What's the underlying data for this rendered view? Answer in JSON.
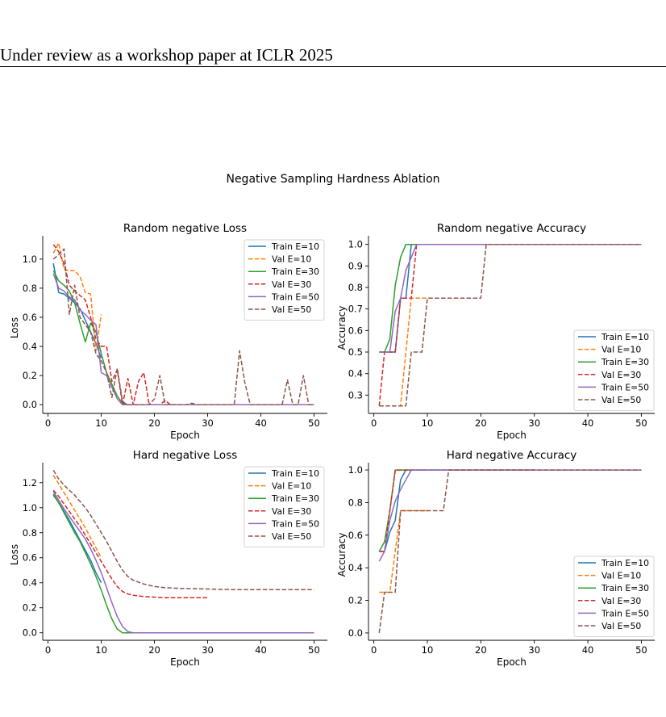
{
  "header": {
    "text": "Under review as a workshop paper at ICLR 2025"
  },
  "figure": {
    "suptitle": "Negative Sampling Hardness Ablation"
  },
  "colors": {
    "Train E=10": "#1f77b4",
    "Val E=10": "#ff7f0e",
    "Train E=30": "#2ca02c",
    "Val E=30": "#d62728",
    "Train E=50": "#9467bd",
    "Val E=50": "#8c564b"
  },
  "chart_data": [
    {
      "type": "line",
      "title": "Random negative Loss",
      "xlabel": "Epoch",
      "ylabel": "Loss",
      "xlim": [
        -1,
        52.5
      ],
      "ylim": [
        -0.06,
        1.16
      ],
      "xticks": [
        0,
        10,
        20,
        30,
        40,
        50
      ],
      "yticks": [
        0.0,
        0.2,
        0.4,
        0.6,
        0.8,
        1.0
      ],
      "ytick_labels": [
        "0.0",
        "0.2",
        "0.4",
        "0.6",
        "0.8",
        "1.0"
      ],
      "grid": false,
      "legend": "top-right",
      "series": [
        {
          "name": "Train E=10",
          "dash": false,
          "x": [
            1,
            2,
            3,
            4,
            5,
            6,
            7,
            8,
            9,
            10
          ],
          "y": [
            0.97,
            0.77,
            0.76,
            0.73,
            0.7,
            0.66,
            0.58,
            0.5,
            0.42,
            0.32
          ]
        },
        {
          "name": "Val E=10",
          "dash": true,
          "x": [
            1,
            2,
            3,
            4,
            5,
            6,
            7,
            8,
            9,
            10
          ],
          "y": [
            1.04,
            1.11,
            0.93,
            0.92,
            0.92,
            0.88,
            0.77,
            0.76,
            0.37,
            0.62
          ]
        },
        {
          "name": "Train E=30",
          "dash": false,
          "x": [
            1,
            2,
            3,
            4,
            5,
            6,
            7,
            8,
            9,
            10,
            11,
            12,
            13,
            14,
            15,
            16,
            17,
            18,
            19,
            20,
            21,
            22,
            23,
            24,
            25,
            26,
            27,
            28,
            29,
            30
          ],
          "y": [
            0.92,
            0.85,
            0.82,
            0.78,
            0.7,
            0.56,
            0.43,
            0.56,
            0.5,
            0.35,
            0.22,
            0.14,
            0.06,
            0.01,
            0,
            0,
            0,
            0,
            0,
            0,
            0,
            0,
            0,
            0,
            0,
            0,
            0,
            0,
            0,
            0
          ]
        },
        {
          "name": "Val E=30",
          "dash": true,
          "x": [
            1,
            2,
            3,
            4,
            5,
            6,
            7,
            8,
            9,
            10,
            11,
            12,
            13,
            14,
            15,
            16,
            17,
            18,
            19,
            20,
            21,
            22,
            23,
            24,
            25,
            26,
            27,
            28,
            29,
            30
          ],
          "y": [
            1.1,
            1.05,
            0.97,
            0.82,
            0.78,
            0.75,
            0.72,
            0.6,
            0.45,
            0.4,
            0.4,
            0.16,
            0.24,
            0,
            0.18,
            0,
            0.16,
            0.22,
            0,
            0,
            0,
            0.03,
            0,
            0,
            0,
            0,
            0,
            0,
            0,
            0
          ]
        },
        {
          "name": "Train E=50",
          "dash": false,
          "x": [
            1,
            2,
            3,
            4,
            5,
            6,
            7,
            8,
            9,
            10,
            11,
            12,
            13,
            14,
            15,
            16,
            20,
            25,
            30,
            35,
            40,
            45,
            50
          ],
          "y": [
            0.9,
            0.8,
            0.78,
            0.74,
            0.72,
            0.65,
            0.62,
            0.58,
            0.55,
            0.22,
            0.2,
            0.12,
            0.04,
            0,
            0,
            0,
            0,
            0,
            0,
            0,
            0,
            0,
            0
          ]
        },
        {
          "name": "Val E=50",
          "dash": true,
          "x": [
            1,
            2,
            3,
            4,
            5,
            6,
            7,
            8,
            9,
            10,
            11,
            12,
            13,
            14,
            15,
            16,
            19,
            20,
            21,
            22,
            26,
            27,
            28,
            35,
            36,
            37,
            38,
            44,
            45,
            46,
            47,
            48,
            49,
            50
          ],
          "y": [
            1.0,
            1.03,
            1.07,
            0.62,
            0.82,
            0.6,
            0.55,
            0.5,
            0.35,
            0.3,
            0.22,
            0.05,
            0.25,
            0.02,
            0,
            0,
            0,
            0.04,
            0.2,
            0,
            0,
            0.01,
            0,
            0,
            0.37,
            0.15,
            0,
            0,
            0.17,
            0,
            0,
            0.2,
            0,
            0
          ]
        }
      ]
    },
    {
      "type": "line",
      "title": "Random negative Accuracy",
      "xlabel": "Epoch",
      "ylabel": "Accuracy",
      "xlim": [
        -1,
        52.5
      ],
      "ylim": [
        0.215,
        1.04
      ],
      "xticks": [
        0,
        10,
        20,
        30,
        40,
        50
      ],
      "yticks": [
        0.3,
        0.4,
        0.5,
        0.6,
        0.7,
        0.8,
        0.9,
        1.0
      ],
      "ytick_labels": [
        "0.3",
        "0.4",
        "0.5",
        "0.6",
        "0.7",
        "0.8",
        "0.9",
        "1.0"
      ],
      "grid": false,
      "legend": "lower-right",
      "series": [
        {
          "name": "Train E=10",
          "dash": false,
          "x": [
            1,
            2,
            3,
            4,
            5,
            6,
            7,
            8,
            9,
            10,
            50
          ],
          "y": [
            0.5,
            0.5,
            0.5,
            0.5,
            0.75,
            0.75,
            1.0,
            1.0,
            1.0,
            1.0,
            1.0
          ]
        },
        {
          "name": "Val E=10",
          "dash": true,
          "x": [
            1,
            2,
            3,
            4,
            5,
            6,
            7,
            8,
            9,
            10
          ],
          "y": [
            0.25,
            0.25,
            0.25,
            0.25,
            0.25,
            0.5,
            0.75,
            0.75,
            0.75,
            0.75
          ]
        },
        {
          "name": "Train E=30",
          "dash": false,
          "x": [
            1,
            2,
            3,
            4,
            5,
            6,
            7,
            8,
            30
          ],
          "y": [
            0.5,
            0.5,
            0.56,
            0.81,
            0.94,
            1.0,
            1.0,
            1.0,
            1.0
          ]
        },
        {
          "name": "Val E=30",
          "dash": true,
          "x": [
            1,
            2,
            3,
            4,
            5,
            6,
            7,
            8,
            30
          ],
          "y": [
            0.25,
            0.5,
            0.5,
            0.5,
            0.75,
            0.75,
            0.75,
            1.0,
            1.0
          ]
        },
        {
          "name": "Train E=50",
          "dash": false,
          "x": [
            1,
            2,
            3,
            4,
            5,
            6,
            7,
            8,
            50
          ],
          "y": [
            0.5,
            0.5,
            0.5,
            0.69,
            0.75,
            0.88,
            0.94,
            1.0,
            1.0
          ]
        },
        {
          "name": "Val E=50",
          "dash": true,
          "x": [
            1,
            6,
            7,
            8,
            9,
            10,
            11,
            20,
            21,
            22,
            50
          ],
          "y": [
            0.25,
            0.25,
            0.5,
            0.5,
            0.5,
            0.75,
            0.75,
            0.75,
            1.0,
            1.0,
            1.0
          ]
        }
      ]
    },
    {
      "type": "line",
      "title": "Hard negative Loss",
      "xlabel": "Epoch",
      "ylabel": "Loss",
      "xlim": [
        -1,
        52.5
      ],
      "ylim": [
        -0.06,
        1.36
      ],
      "xticks": [
        0,
        10,
        20,
        30,
        40,
        50
      ],
      "yticks": [
        0.0,
        0.2,
        0.4,
        0.6,
        0.8,
        1.0,
        1.2
      ],
      "ytick_labels": [
        "0.0",
        "0.2",
        "0.4",
        "0.6",
        "0.8",
        "1.0",
        "1.2"
      ],
      "grid": false,
      "legend": "top-right",
      "series": [
        {
          "name": "Train E=10",
          "dash": false,
          "x": [
            1,
            2,
            3,
            4,
            5,
            6,
            7,
            8,
            9,
            10
          ],
          "y": [
            1.1,
            1.04,
            0.97,
            0.9,
            0.82,
            0.74,
            0.66,
            0.58,
            0.48,
            0.4
          ]
        },
        {
          "name": "Val E=10",
          "dash": true,
          "x": [
            1,
            2,
            3,
            4,
            5,
            6,
            7,
            8,
            9,
            10
          ],
          "y": [
            1.26,
            1.19,
            1.12,
            1.05,
            0.98,
            0.91,
            0.84,
            0.76,
            0.68,
            0.6
          ]
        },
        {
          "name": "Train E=30",
          "dash": false,
          "x": [
            1,
            2,
            3,
            4,
            5,
            6,
            7,
            8,
            9,
            10,
            11,
            12,
            13,
            14,
            15,
            16,
            20,
            25,
            30
          ],
          "y": [
            1.11,
            1.04,
            0.96,
            0.88,
            0.8,
            0.73,
            0.64,
            0.55,
            0.45,
            0.34,
            0.22,
            0.11,
            0.03,
            0.0,
            0.0,
            0.0,
            0.0,
            0.0,
            0.0
          ]
        },
        {
          "name": "Val E=30",
          "dash": true,
          "x": [
            1,
            2,
            3,
            4,
            5,
            6,
            7,
            8,
            9,
            10,
            11,
            12,
            13,
            14,
            15,
            16,
            18,
            20,
            22,
            25,
            30
          ],
          "y": [
            1.14,
            1.09,
            1.03,
            0.97,
            0.91,
            0.85,
            0.78,
            0.71,
            0.64,
            0.57,
            0.5,
            0.43,
            0.37,
            0.33,
            0.31,
            0.3,
            0.29,
            0.285,
            0.28,
            0.28,
            0.28
          ]
        },
        {
          "name": "Train E=50",
          "dash": false,
          "x": [
            1,
            2,
            3,
            4,
            5,
            6,
            7,
            8,
            9,
            10,
            11,
            12,
            13,
            14,
            15,
            16,
            18,
            20,
            30,
            40,
            50
          ],
          "y": [
            1.13,
            1.06,
            0.99,
            0.93,
            0.87,
            0.81,
            0.75,
            0.67,
            0.58,
            0.48,
            0.36,
            0.24,
            0.13,
            0.05,
            0.01,
            0.0,
            0.0,
            0.0,
            0.0,
            0.0,
            0.0
          ]
        },
        {
          "name": "Val E=50",
          "dash": true,
          "x": [
            1,
            2,
            3,
            4,
            5,
            6,
            7,
            8,
            9,
            10,
            11,
            12,
            13,
            14,
            15,
            16,
            18,
            20,
            22,
            25,
            30,
            35,
            40,
            45,
            50
          ],
          "y": [
            1.3,
            1.23,
            1.18,
            1.14,
            1.1,
            1.05,
            1.0,
            0.94,
            0.87,
            0.8,
            0.73,
            0.65,
            0.57,
            0.5,
            0.45,
            0.42,
            0.39,
            0.37,
            0.36,
            0.355,
            0.35,
            0.345,
            0.345,
            0.345,
            0.345
          ]
        }
      ]
    },
    {
      "type": "line",
      "title": "Hard negative Accuracy",
      "xlabel": "Epoch",
      "ylabel": "Accuracy",
      "xlim": [
        -1,
        52.5
      ],
      "ylim": [
        -0.045,
        1.045
      ],
      "xticks": [
        0,
        10,
        20,
        30,
        40,
        50
      ],
      "yticks": [
        0.0,
        0.2,
        0.4,
        0.6,
        0.8,
        1.0
      ],
      "ytick_labels": [
        "0.0",
        "0.2",
        "0.4",
        "0.6",
        "0.8",
        "1.0"
      ],
      "grid": false,
      "legend": "lower-right",
      "series": [
        {
          "name": "Train E=10",
          "dash": false,
          "x": [
            1,
            2,
            3,
            4,
            5,
            6,
            7,
            8,
            9,
            10
          ],
          "y": [
            0.5,
            0.5,
            0.62,
            0.69,
            0.94,
            1.0,
            1.0,
            1.0,
            1.0,
            1.0
          ]
        },
        {
          "name": "Val E=10",
          "dash": true,
          "x": [
            1,
            2,
            3,
            4,
            5,
            6,
            7,
            8,
            9,
            10
          ],
          "y": [
            0.25,
            0.25,
            0.25,
            0.5,
            0.75,
            0.75,
            0.75,
            0.75,
            0.75,
            0.75
          ]
        },
        {
          "name": "Train E=30",
          "dash": false,
          "x": [
            1,
            2,
            3,
            4,
            5,
            6,
            7,
            8,
            30
          ],
          "y": [
            0.5,
            0.56,
            0.75,
            1.0,
            1.0,
            1.0,
            1.0,
            1.0,
            1.0
          ]
        },
        {
          "name": "Val E=30",
          "dash": true,
          "x": [
            1,
            2,
            3,
            4,
            5,
            6,
            7,
            8,
            30
          ],
          "y": [
            0.5,
            0.5,
            0.75,
            1.0,
            1.0,
            1.0,
            1.0,
            1.0,
            1.0
          ]
        },
        {
          "name": "Train E=50",
          "dash": false,
          "x": [
            1,
            2,
            3,
            4,
            5,
            6,
            7,
            8,
            50
          ],
          "y": [
            0.44,
            0.5,
            0.69,
            0.81,
            0.88,
            0.94,
            1.0,
            1.0,
            1.0
          ]
        },
        {
          "name": "Val E=50",
          "dash": true,
          "x": [
            1,
            2,
            3,
            4,
            5,
            6,
            13,
            14,
            15,
            50
          ],
          "y": [
            0.0,
            0.25,
            0.25,
            0.25,
            0.75,
            0.75,
            0.75,
            1.0,
            1.0,
            1.0
          ]
        }
      ]
    }
  ]
}
